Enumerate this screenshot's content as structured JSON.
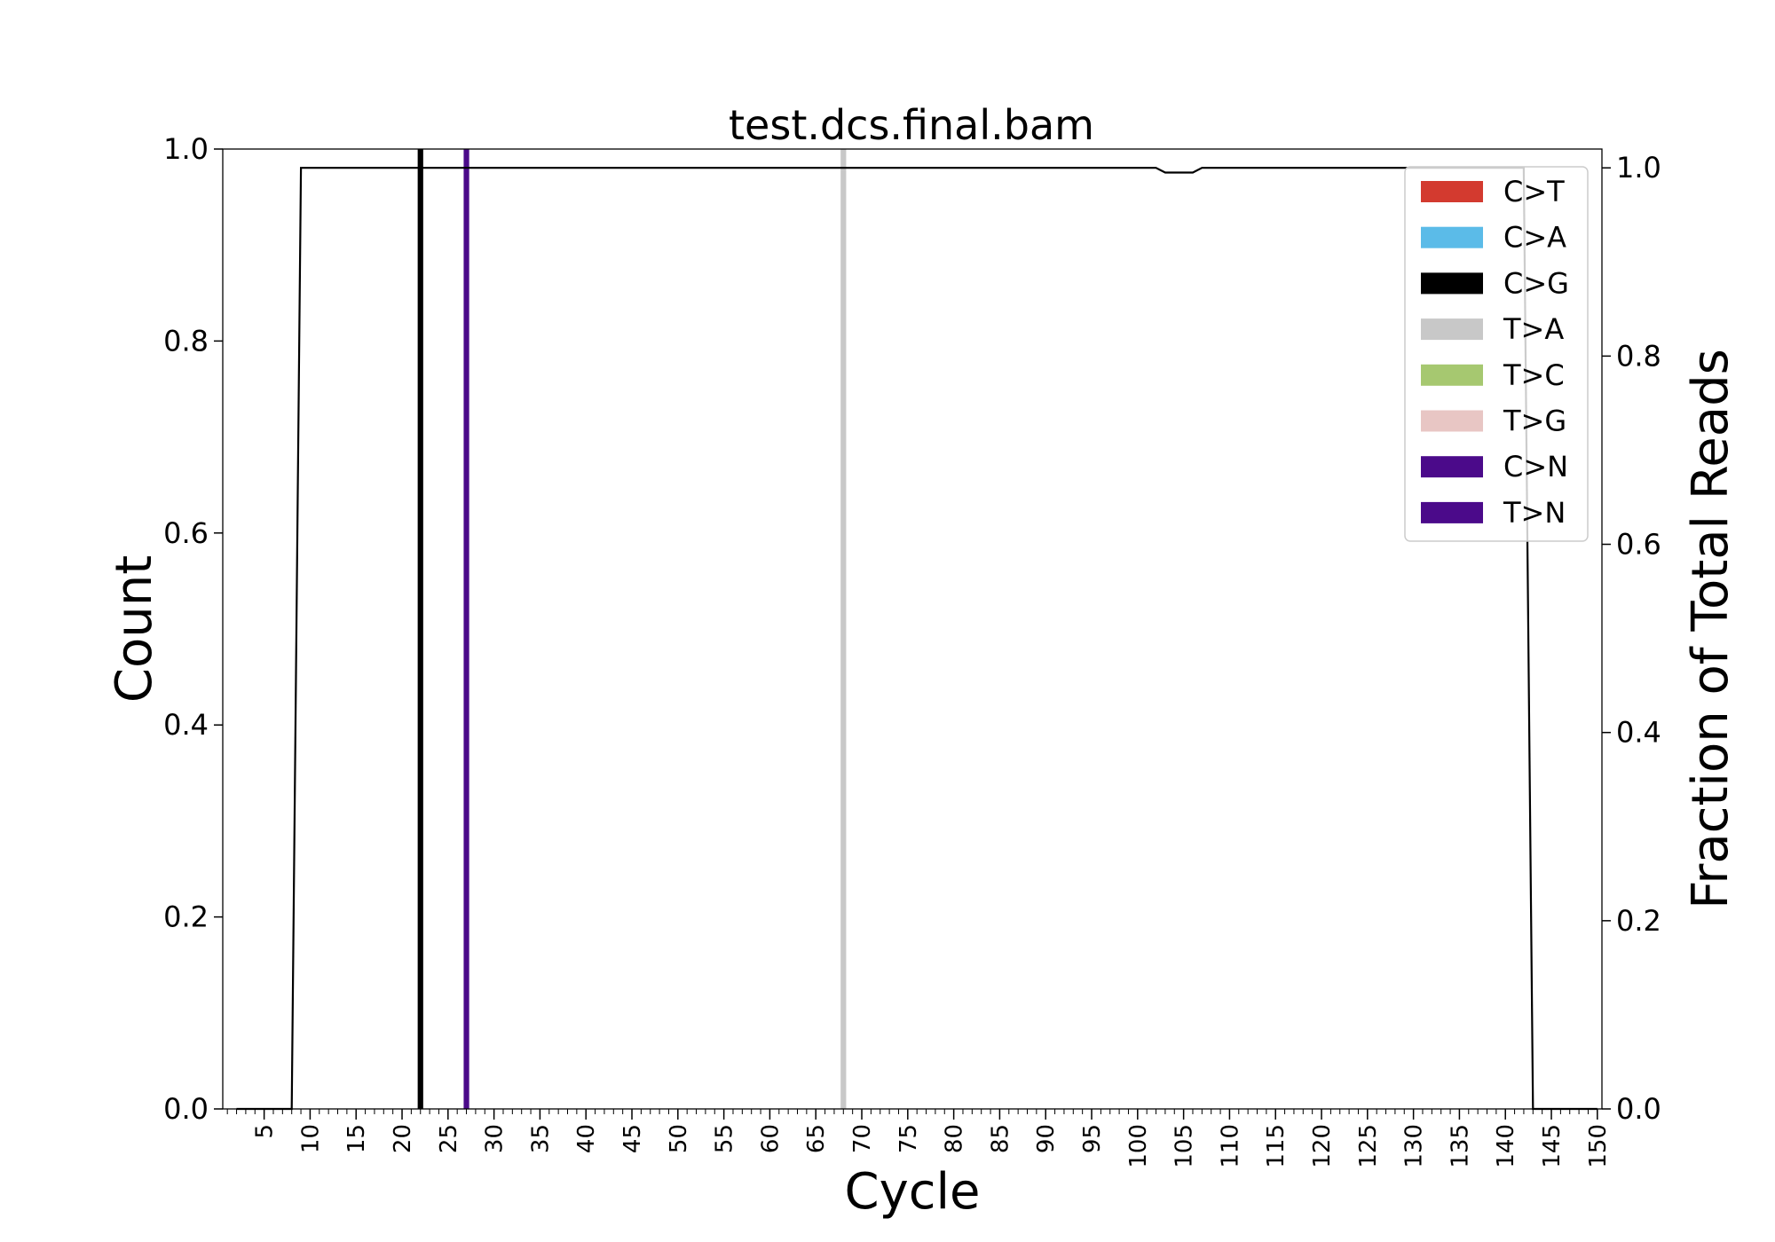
{
  "chart_data": {
    "type": "bar",
    "title": "test.dcs.final.bam",
    "xlabel": "Cycle",
    "ylabel": "Count",
    "y2label": "Fraction of Total Reads",
    "xlim": [
      0.5,
      150.5
    ],
    "ylim": [
      0,
      1.0
    ],
    "y2lim": [
      0,
      1.02
    ],
    "grid": false,
    "legend_position": "top-right",
    "x_tick_labels": [
      "5",
      "10",
      "15",
      "20",
      "25",
      "30",
      "35",
      "40",
      "45",
      "50",
      "55",
      "60",
      "65",
      "70",
      "75",
      "80",
      "85",
      "90",
      "95",
      "100",
      "105",
      "110",
      "115",
      "120",
      "125",
      "130",
      "135",
      "140",
      "145",
      "150"
    ],
    "y_tick_labels": [
      "0.0",
      "0.2",
      "0.4",
      "0.6",
      "0.8",
      "1.0"
    ],
    "y2_tick_labels": [
      "0.0",
      "0.2",
      "0.4",
      "0.6",
      "0.8",
      "1.0"
    ],
    "series": [
      {
        "name": "C>T",
        "color": "#d33a2f",
        "bars": []
      },
      {
        "name": "C>A",
        "color": "#5bbbe8",
        "bars": []
      },
      {
        "name": "C>G",
        "color": "#000000",
        "bars": [
          {
            "cycle": 22,
            "count": 1.0
          }
        ]
      },
      {
        "name": "T>A",
        "color": "#c8c8c8",
        "bars": [
          {
            "cycle": 68,
            "count": 1.0
          }
        ]
      },
      {
        "name": "T>C",
        "color": "#a6c870",
        "bars": []
      },
      {
        "name": "T>G",
        "color": "#e8c6c4",
        "bars": []
      },
      {
        "name": "C>N",
        "color": "#4b0a8a",
        "bars": []
      },
      {
        "name": "T>N",
        "color": "#4b0a8a",
        "bars": [
          {
            "cycle": 27,
            "count": 1.0
          }
        ]
      }
    ],
    "fraction_line": {
      "color": "#000000",
      "x": [
        2,
        8,
        9,
        102,
        103,
        106,
        107,
        142,
        143,
        150
      ],
      "y": [
        0.0,
        0.0,
        1.0,
        1.0,
        0.995,
        0.995,
        1.0,
        1.0,
        0.0,
        0.0
      ]
    }
  }
}
